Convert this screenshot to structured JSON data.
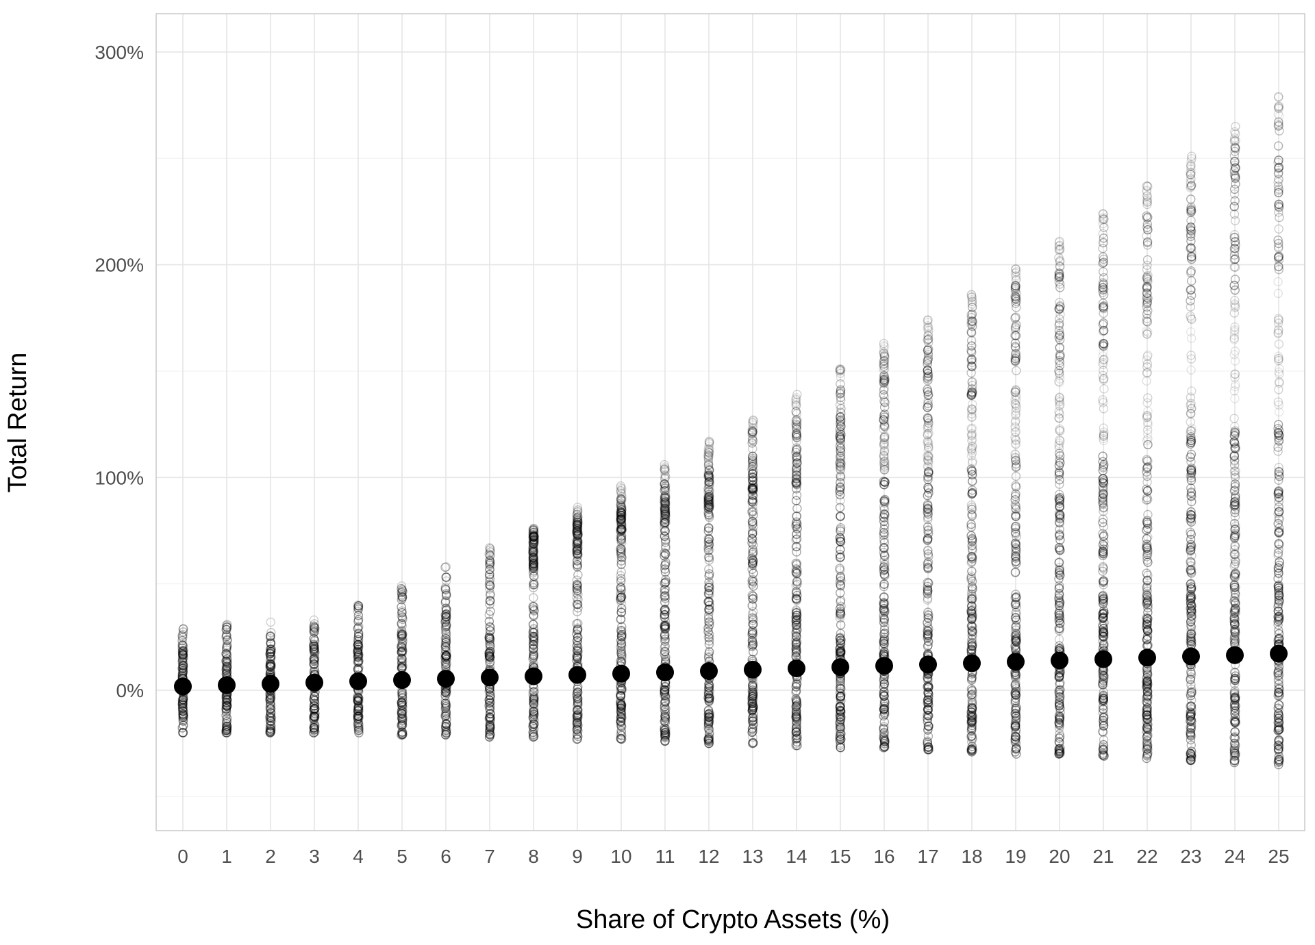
{
  "chart_data": {
    "type": "scatter",
    "title": "",
    "xlabel": "Share of Crypto Assets (%)",
    "ylabel": "Total Return",
    "x_categories": [
      "0",
      "1",
      "2",
      "3",
      "4",
      "5",
      "6",
      "7",
      "8",
      "9",
      "10",
      "11",
      "12",
      "13",
      "14",
      "15",
      "16",
      "17",
      "18",
      "19",
      "20",
      "21",
      "22",
      "23",
      "24",
      "25"
    ],
    "ylim": [
      -66,
      318
    ],
    "y_ticks": [
      0,
      100,
      200,
      300
    ],
    "y_tick_labels": [
      "0%",
      "100%",
      "200%",
      "300%"
    ],
    "y_minor_ticks": [
      -50,
      50,
      150,
      250
    ],
    "grid": true,
    "legend": "none",
    "colors": {
      "background": "#ffffff",
      "grid_major": "#e5e5e5",
      "grid_minor": "#f2f2f2",
      "panel_border": "#c8c8c8",
      "simulation_point": "#000000",
      "mean_point": "#000000"
    },
    "simulations": {
      "description_hidden": true,
      "min_return": [
        -20,
        -20,
        -20,
        -20,
        -20,
        -21,
        -21,
        -22,
        -22,
        -23,
        -23,
        -24,
        -25,
        -25,
        -26,
        -27,
        -27,
        -28,
        -29,
        -30,
        -30,
        -31,
        -32,
        -33,
        -34,
        -35
      ],
      "max_return": [
        29,
        31,
        32,
        33,
        40,
        49,
        58,
        67,
        76,
        86,
        96,
        106,
        117,
        127,
        139,
        151,
        163,
        174,
        186,
        198,
        211,
        224,
        237,
        251,
        265,
        279
      ],
      "dense_upper_band": [
        [
          0,
          0
        ],
        [
          0,
          0
        ],
        [
          0,
          0
        ],
        [
          0,
          0
        ],
        [
          0,
          0
        ],
        [
          0,
          0
        ],
        [
          0,
          0
        ],
        [
          0,
          0
        ],
        [
          55,
          75
        ],
        [
          63,
          82
        ],
        [
          70,
          92
        ],
        [
          78,
          102
        ],
        [
          85,
          112
        ],
        [
          95,
          122
        ],
        [
          100,
          132
        ],
        [
          110,
          145
        ],
        [
          118,
          157
        ],
        [
          125,
          167
        ],
        [
          135,
          180
        ],
        [
          140,
          192
        ],
        [
          150,
          205
        ],
        [
          160,
          218
        ],
        [
          170,
          230
        ],
        [
          180,
          243
        ],
        [
          188,
          255
        ],
        [
          195,
          268
        ]
      ]
    },
    "mean_points": {
      "x": [
        0,
        1,
        2,
        3,
        4,
        5,
        6,
        7,
        8,
        9,
        10,
        11,
        12,
        13,
        14,
        15,
        16,
        17,
        18,
        19,
        20,
        21,
        22,
        23,
        24,
        25
      ],
      "y": [
        1.8,
        2.4,
        3.0,
        3.6,
        4.2,
        4.8,
        5.4,
        6.0,
        6.6,
        7.2,
        7.8,
        8.4,
        9.0,
        9.7,
        10.3,
        10.9,
        11.5,
        12.1,
        12.7,
        13.4,
        14.0,
        14.6,
        15.3,
        15.9,
        16.5,
        17.2
      ]
    }
  }
}
